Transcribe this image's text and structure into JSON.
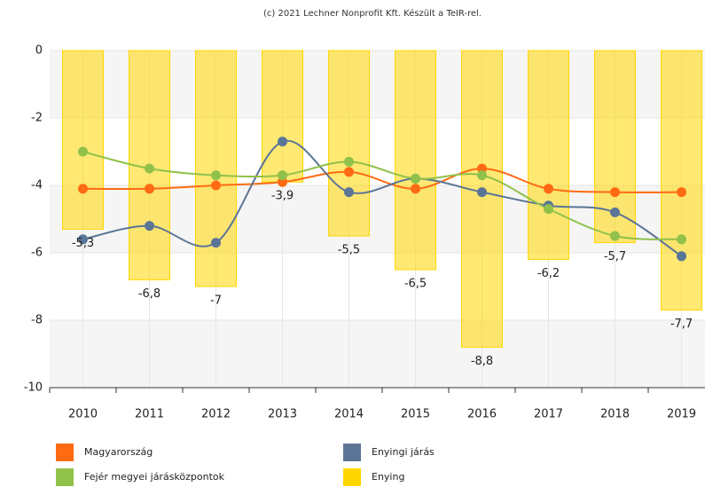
{
  "chart_data": {
    "type": "bar",
    "title": "(c) 2021 Lechner Nonprofit Kft. Készült a TeIR-rel.",
    "categories": [
      "2010",
      "2011",
      "2012",
      "2013",
      "2014",
      "2015",
      "2016",
      "2017",
      "2018",
      "2019"
    ],
    "ylim": [
      -10,
      0
    ],
    "yticks": [
      0,
      -2,
      -4,
      -6,
      -8,
      -10
    ],
    "grid": true,
    "series": [
      {
        "name": "Magyarország",
        "type": "line",
        "color": "#ff6a13",
        "values": [
          -4.1,
          -4.1,
          -4.0,
          -3.9,
          -3.6,
          -4.1,
          -3.5,
          -4.1,
          -4.2,
          -4.2
        ]
      },
      {
        "name": "Enyingi járás",
        "type": "line",
        "color": "#5b7597",
        "values": [
          -5.6,
          -5.2,
          -5.7,
          -2.7,
          -4.2,
          -3.8,
          -4.2,
          -4.6,
          -4.8,
          -6.1
        ]
      },
      {
        "name": "Fejér megyei járásközpontok",
        "type": "line",
        "color": "#90c14a",
        "values": [
          -3.0,
          -3.5,
          -3.7,
          -3.7,
          -3.3,
          -3.8,
          -3.7,
          -4.7,
          -5.5,
          -5.6
        ]
      },
      {
        "name": "Enying",
        "type": "bar",
        "color": "#ffd700",
        "values": [
          -5.3,
          -6.8,
          -7,
          -3.9,
          -5.5,
          -6.5,
          -8.8,
          -6.2,
          -5.7,
          -7.7
        ],
        "value_labels": [
          "-5,3",
          "-6,8",
          "-7",
          "-3,9",
          "-5,5",
          "-6,5",
          "-8,8",
          "-6,2",
          "-5,7",
          "-7,7"
        ]
      }
    ]
  }
}
